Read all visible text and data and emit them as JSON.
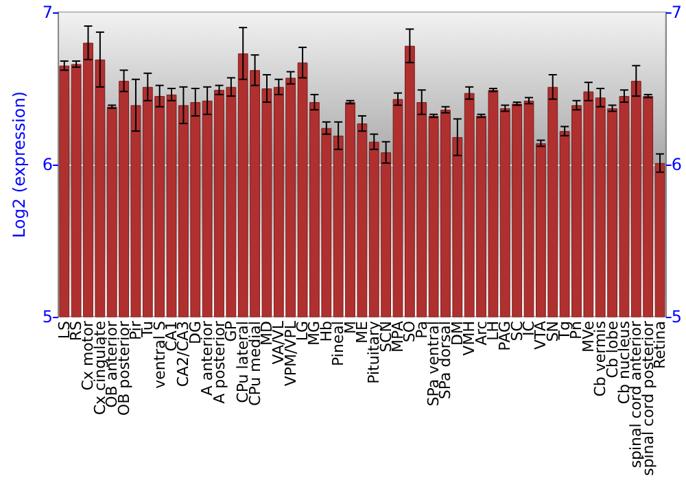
{
  "chart_data": {
    "type": "bar",
    "ylabel": "Log2 (expression)",
    "categories": [
      "LS",
      "RS",
      "Cx motor",
      "Cx cingulate",
      "OB anterior",
      "OB posterior",
      "Pir",
      "Tu",
      "ventral S",
      "CA1",
      "CA2/CA3",
      "DG",
      "A anterior",
      "A posterior",
      "GP",
      "CPu lateral",
      "CPu medial",
      "MD",
      "VA/VL",
      "VPM/VPL",
      "LG",
      "MG",
      "Hb",
      "Pineal",
      "M",
      "ME",
      "Pituitary",
      "SCN",
      "MPA",
      "SO",
      "Pa",
      "SPa ventral",
      "SPa dorsal",
      "DM",
      "VMH",
      "Arc",
      "LH",
      "PAG",
      "SC",
      "IC",
      "VTA",
      "SN",
      "Tg",
      "Pn",
      "MVe",
      "Cb vermis",
      "Cb lobe",
      "Cb nucleus",
      "spinal cord anterior",
      "spinal cord posterior",
      "Retina"
    ],
    "values": [
      6.65,
      6.66,
      6.8,
      6.69,
      6.38,
      6.55,
      6.39,
      6.51,
      6.45,
      6.46,
      6.39,
      6.41,
      6.42,
      6.49,
      6.51,
      6.73,
      6.62,
      6.5,
      6.51,
      6.57,
      6.67,
      6.41,
      6.24,
      6.19,
      6.41,
      6.27,
      6.15,
      6.08,
      6.43,
      6.78,
      6.41,
      6.32,
      6.36,
      6.18,
      6.47,
      6.32,
      6.49,
      6.37,
      6.4,
      6.42,
      6.14,
      6.51,
      6.22,
      6.39,
      6.48,
      6.44,
      6.37,
      6.45,
      6.55,
      6.45,
      6.01
    ],
    "errors": [
      0.03,
      0.02,
      0.11,
      0.18,
      0.01,
      0.07,
      0.17,
      0.09,
      0.07,
      0.04,
      0.12,
      0.09,
      0.09,
      0.03,
      0.06,
      0.17,
      0.1,
      0.09,
      0.05,
      0.04,
      0.1,
      0.05,
      0.04,
      0.09,
      0.01,
      0.05,
      0.05,
      0.07,
      0.04,
      0.11,
      0.08,
      0.01,
      0.02,
      0.12,
      0.04,
      0.01,
      0.01,
      0.02,
      0.01,
      0.02,
      0.02,
      0.08,
      0.03,
      0.03,
      0.06,
      0.06,
      0.02,
      0.04,
      0.1,
      0.01,
      0.06
    ],
    "color": "#b03030",
    "ylim": [
      5,
      7
    ],
    "yticks": [
      5,
      6,
      7
    ],
    "y2lim": [
      5,
      7
    ],
    "y2ticks": [
      5,
      6,
      7
    ],
    "grid": "y"
  }
}
